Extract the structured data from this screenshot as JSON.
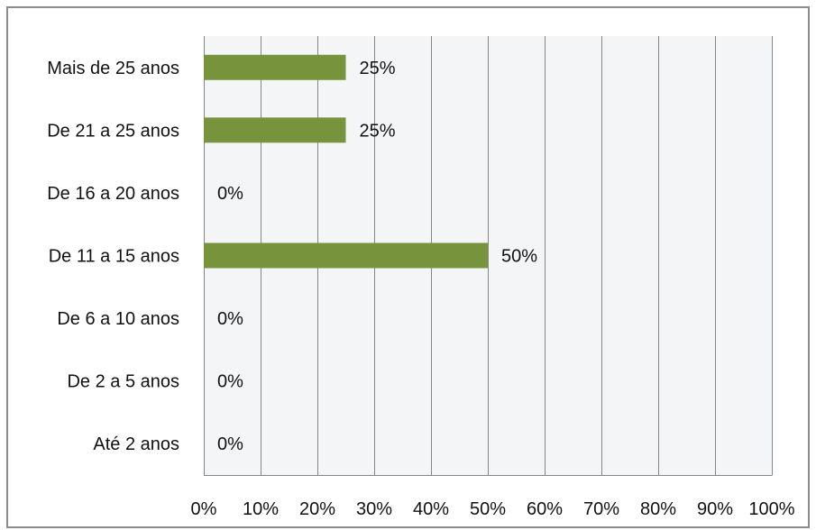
{
  "chart_data": {
    "type": "bar",
    "orientation": "horizontal",
    "categories": [
      "Mais de 25 anos",
      "De 21 a 25 anos",
      "De 16 a 20 anos",
      "De 11 a 15 anos",
      "De 6 a 10 anos",
      "De 2 a 5 anos",
      "Até 2 anos"
    ],
    "values": [
      25,
      25,
      0,
      50,
      0,
      0,
      0
    ],
    "data_labels": [
      "25%",
      "25%",
      "0%",
      "50%",
      "0%",
      "0%",
      "0%"
    ],
    "xlim": [
      0,
      100
    ],
    "x_ticks": [
      "0%",
      "10%",
      "20%",
      "30%",
      "40%",
      "50%",
      "60%",
      "70%",
      "80%",
      "90%",
      "100%"
    ],
    "grid": "vertical",
    "legend": "none",
    "bar_color": "#77933c",
    "plot_background": "#f3f5f7",
    "grid_color": "#868686"
  }
}
